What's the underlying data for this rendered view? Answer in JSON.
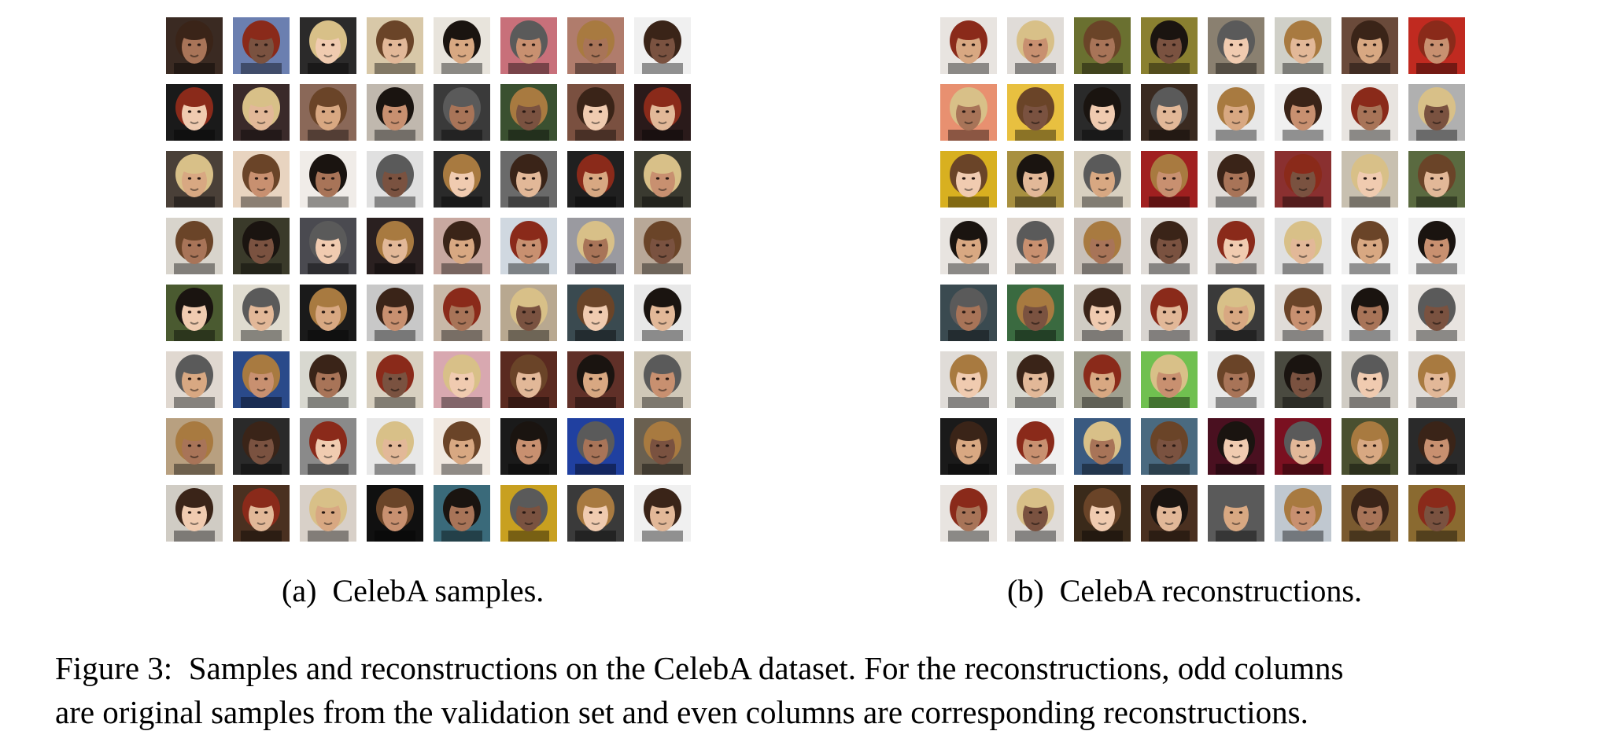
{
  "figure": {
    "label": "Figure 3:",
    "caption_line1": "Samples and reconstructions on the CelebA dataset. For the reconstructions, odd columns",
    "caption_line2": "are original samples from the validation set and even columns are corresponding reconstructions."
  },
  "panels": [
    {
      "subcaption_label": "(a)",
      "subcaption_text": "CelebA samples.",
      "grid": {
        "rows": 8,
        "cols": 8,
        "tile_colors": [
          [
            "#3a2a22",
            "#6b7fb0",
            "#2b2a2a",
            "#d8c8a8",
            "#e8e4dc",
            "#c8707a",
            "#b07c6c",
            "#f0f0f0"
          ],
          [
            "#1a1a1a",
            "#3a2a2a",
            "#8a6858",
            "#c0b8ae",
            "#3a3a3a",
            "#3a5030",
            "#7a5040",
            "#2a1a1a"
          ],
          [
            "#4a4038",
            "#e8d4c0",
            "#f0ece8",
            "#e0e0e0",
            "#2a2a2a",
            "#6a6a6a",
            "#202020",
            "#3a3a30"
          ],
          [
            "#d8d4cc",
            "#3a3a2a",
            "#4a4a50",
            "#2a2020",
            "#c8a8a0",
            "#d0d8e0",
            "#9a9aa0",
            "#b8a898"
          ],
          [
            "#4a5a30",
            "#e0dcd0",
            "#1a1a1a",
            "#c8c8c8",
            "#c8b8a8",
            "#b8a890",
            "#3a4a50",
            "#e8e8e8"
          ],
          [
            "#e0d8d0",
            "#2a4a8a",
            "#d8d8d0",
            "#d8d0c0",
            "#d8a8b0",
            "#5a2a20",
            "#603028",
            "#d0c8b8"
          ],
          [
            "#b8a080",
            "#2a2a2a",
            "#8a8a8a",
            "#e8e8e8",
            "#f0e8e0",
            "#1a1a1a",
            "#2040a0",
            "#6a6050"
          ],
          [
            "#d0ccc4",
            "#4a3020",
            "#d8d0c8",
            "#101010",
            "#3a6a7a",
            "#c8a020",
            "#3a3a3a",
            "#f0f0f0"
          ]
        ]
      }
    },
    {
      "subcaption_label": "(b)",
      "subcaption_text": "CelebA reconstructions.",
      "grid": {
        "rows": 8,
        "cols": 8,
        "tile_colors": [
          [
            "#e8e4e0",
            "#e0dcd8",
            "#6a7030",
            "#8a8030",
            "#8a8070",
            "#d0d0c8",
            "#6a4a3a",
            "#c02a20"
          ],
          [
            "#e89070",
            "#e8c040",
            "#2a2a2a",
            "#3a2a20",
            "#e8e8e8",
            "#f0f0f0",
            "#e8e4e0",
            "#b0b0b0"
          ],
          [
            "#d8b020",
            "#a89040",
            "#d8d0c0",
            "#a02020",
            "#e0dcd8",
            "#8a3030",
            "#c8c0b0",
            "#5a6a40"
          ],
          [
            "#e8e4e0",
            "#e0d8d0",
            "#c8c0b8",
            "#e0dcd8",
            "#d8d4d0",
            "#e0e0e0",
            "#f0f0f0",
            "#f0f0f0"
          ],
          [
            "#3a4a50",
            "#3a6a40",
            "#d0ccc4",
            "#d8d4d0",
            "#3a3a3a",
            "#e0dcd8",
            "#e8e8e8",
            "#e8e4e0"
          ],
          [
            "#e0dcd8",
            "#d8d8d0",
            "#a0a090",
            "#70c050",
            "#e8e8e8",
            "#4a4a40",
            "#d0ccc4",
            "#e0dcd8"
          ],
          [
            "#1a1a1a",
            "#f0f0f0",
            "#3a5a80",
            "#4a6a80",
            "#4a1020",
            "#7a1020",
            "#4a5030",
            "#2a2a2a"
          ],
          [
            "#e8e4e0",
            "#e0dcd8",
            "#3a2a1a",
            "#4a3020",
            "#5a5a5a",
            "#c0c8d0",
            "#7a5a30",
            "#8a6a30"
          ]
        ]
      }
    }
  ]
}
